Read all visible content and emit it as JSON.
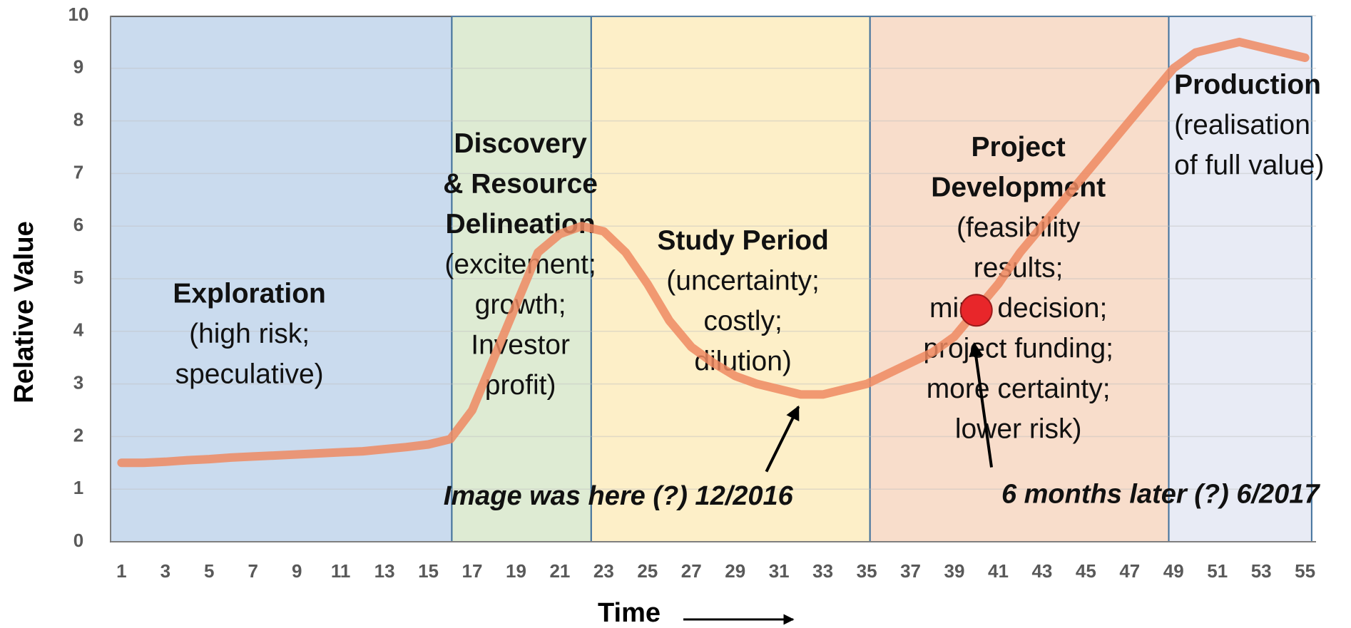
{
  "chart_data": {
    "type": "line",
    "x_label": "Time",
    "y_label": "Relative Value",
    "x": [
      1,
      2,
      3,
      4,
      5,
      6,
      7,
      8,
      9,
      10,
      11,
      12,
      13,
      14,
      15,
      16,
      17,
      18,
      19,
      20,
      21,
      22,
      23,
      24,
      25,
      26,
      27,
      28,
      29,
      30,
      31,
      32,
      33,
      34,
      35,
      36,
      37,
      38,
      39,
      40,
      41,
      42,
      43,
      44,
      45,
      46,
      47,
      48,
      49,
      50,
      51,
      52,
      53,
      54,
      55
    ],
    "values": [
      1.5,
      1.5,
      1.52,
      1.55,
      1.57,
      1.6,
      1.62,
      1.64,
      1.66,
      1.68,
      1.7,
      1.72,
      1.76,
      1.8,
      1.85,
      1.95,
      2.5,
      3.5,
      4.5,
      5.5,
      5.85,
      6.0,
      5.9,
      5.5,
      4.9,
      4.2,
      3.7,
      3.4,
      3.15,
      3.0,
      2.9,
      2.8,
      2.8,
      2.9,
      3.0,
      3.2,
      3.4,
      3.6,
      3.9,
      4.4,
      4.9,
      5.5,
      6.0,
      6.5,
      7.0,
      7.5,
      8.0,
      8.5,
      9.0,
      9.3,
      9.4,
      9.5,
      9.4,
      9.3,
      9.2
    ],
    "color": "#ef8a62",
    "xlim": [
      0.5,
      55.5
    ],
    "xticks": [
      1,
      3,
      5,
      7,
      9,
      11,
      13,
      15,
      17,
      19,
      21,
      23,
      25,
      27,
      29,
      31,
      33,
      35,
      37,
      39,
      41,
      43,
      45,
      47,
      49,
      51,
      53,
      55
    ],
    "ylim": [
      0,
      10
    ],
    "yticks": [
      0,
      1,
      2,
      3,
      4,
      5,
      6,
      7,
      8,
      9,
      10
    ],
    "grid": true,
    "phases": [
      {
        "start": 0.5,
        "end": 16.07,
        "color": "#cadbee",
        "title_lines": [
          "Exploration"
        ],
        "desc_lines": [
          "(high risk;",
          "speculative)"
        ]
      },
      {
        "start": 16.07,
        "end": 22.43,
        "color": "#deebd3",
        "title_lines": [
          "Discovery",
          "& Resource",
          "Delineation"
        ],
        "desc_lines": [
          "(excitement;",
          "growth;",
          "Investor",
          "profit)"
        ]
      },
      {
        "start": 22.43,
        "end": 35.15,
        "color": "#fdefc8",
        "title_lines": [
          "Study Period"
        ],
        "desc_lines": [
          "(uncertainty;",
          "costly;",
          "dilution)"
        ]
      },
      {
        "start": 35.15,
        "end": 48.78,
        "color": "#f8ddcb",
        "title_lines": [
          "Project",
          "Development"
        ],
        "desc_lines": [
          "(feasibility",
          "results;",
          "mine decision;",
          "project funding;",
          "more certainty;",
          "lower risk)"
        ]
      },
      {
        "start": 48.78,
        "end": 55.3,
        "color": "#e8ebf5",
        "title_lines": [
          "Production"
        ],
        "desc_lines": [
          "(realisation",
          "of full value)"
        ]
      }
    ],
    "highlight_point": {
      "x": 40,
      "y": 4.4,
      "color": "#e8262a"
    },
    "annotations": [
      {
        "text": "Image was here (?) 12/2016"
      },
      {
        "text": "6 months later (?) 6/2017"
      }
    ]
  }
}
